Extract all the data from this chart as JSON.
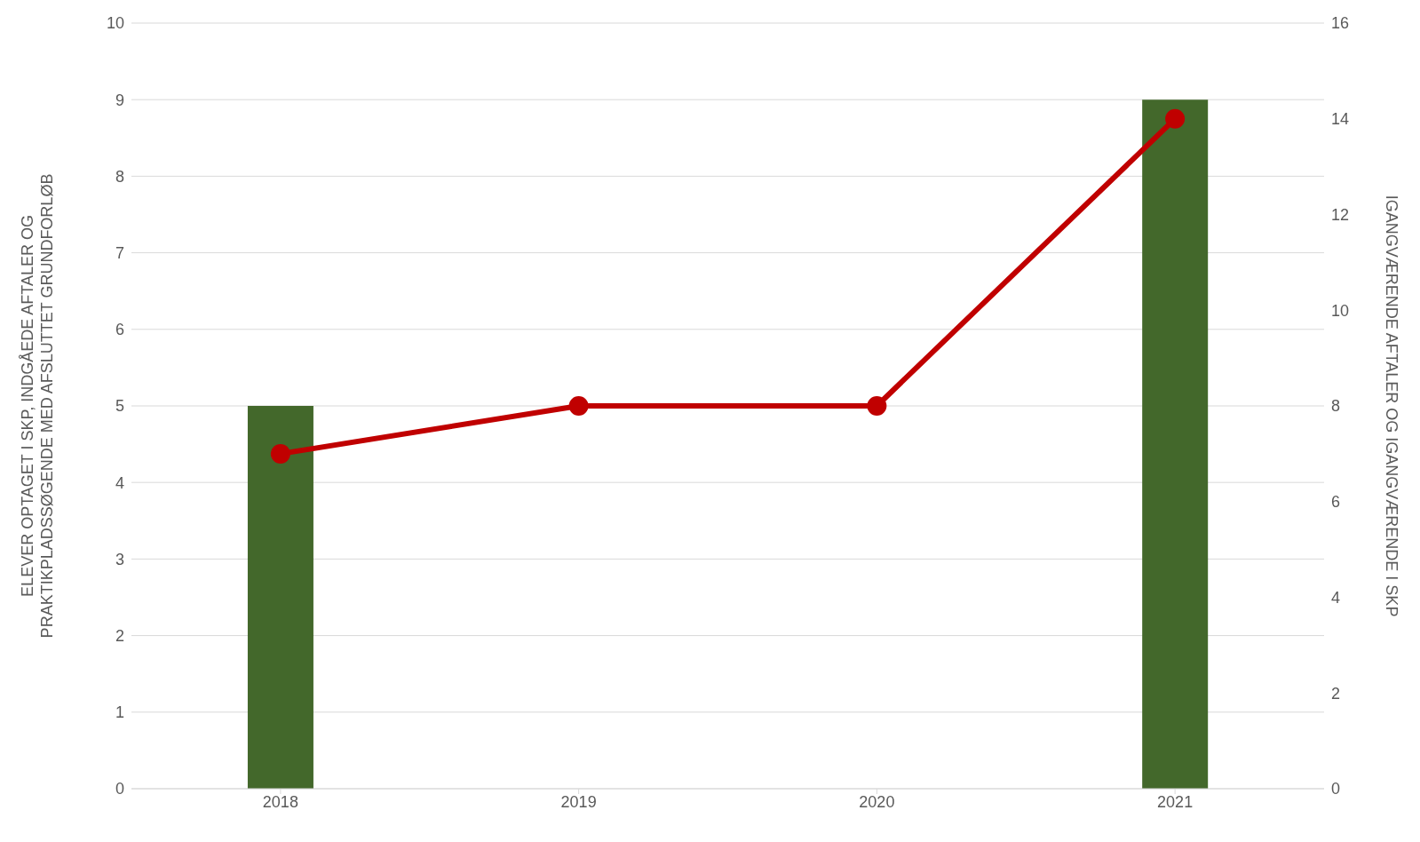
{
  "chart_data": {
    "type": "bar",
    "categories": [
      "2018",
      "2019",
      "2020",
      "2021"
    ],
    "series": [
      {
        "color": "#43682b",
        "values": [
          5,
          0,
          0,
          9
        ]
      },
      {
        "type": "line",
        "axis": "y2",
        "color": "#c00000",
        "values": [
          7,
          8,
          8,
          14
        ]
      }
    ],
    "ylabel": "ELEVER OPTAGET I SKP, INDGÅEDE AFTALER OG PRAKTIKPLADSSØGENDE MED AFSLUTTET GRUNDFORLØB",
    "y2label": "IGANGVÆRENDE AFTALER OG IGANGVÆRENDE I SKP",
    "ylim": [
      0,
      10
    ],
    "yticks": [
      0,
      1,
      2,
      3,
      4,
      5,
      6,
      7,
      8,
      9,
      10
    ],
    "y2lim": [
      0,
      16
    ],
    "y2ticks": [
      0,
      2,
      4,
      6,
      8,
      10,
      12,
      14,
      16
    ],
    "grid": "y",
    "marker": "circle",
    "legend": false
  }
}
